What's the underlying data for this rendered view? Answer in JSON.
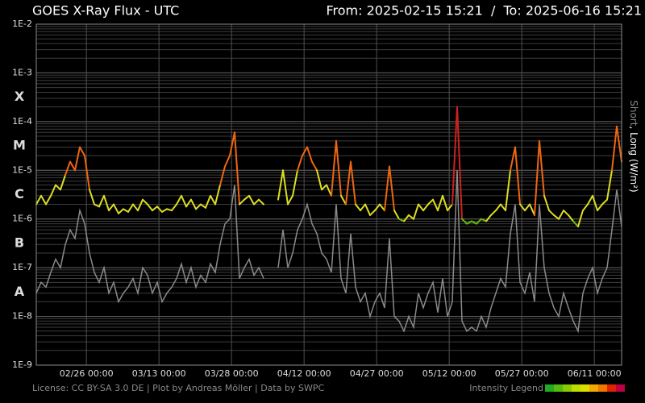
{
  "chart_data": {
    "type": "line",
    "title": "GOES X-Ray Flux - UTC",
    "subtitle": "From: 2025-02-15 15:21  /  To: 2025-06-16 15:21",
    "y_label_short": "Short",
    "y_label_long": ", Long (W/m²)",
    "short_color": "#8a8a8a",
    "long_label_color": "#ffffff",
    "license": "License: CC BY-SA 3.0 DE | Plot by Andreas Möller | Data by SWPC",
    "legend_label": "Intensity Legend",
    "legend_colors": [
      "#22aa22",
      "#55bb11",
      "#88cc00",
      "#bbdd00",
      "#dddd00",
      "#eeaa00",
      "#ee7700",
      "#dd2200",
      "#bb0044"
    ],
    "classes": [
      {
        "label": "X",
        "color": "#cc2222"
      },
      {
        "label": "M",
        "color": "#ee6611"
      },
      {
        "label": "C",
        "color": "#dddd22"
      },
      {
        "label": "B",
        "color": "#66bb11"
      },
      {
        "label": "A",
        "color": "#22aa22"
      }
    ],
    "log_scale": true,
    "grid": true,
    "minor_grid": true,
    "ylim": [
      1e-09,
      0.01
    ],
    "yticks": [
      {
        "value": 0.01,
        "label": "1E-2"
      },
      {
        "value": 0.001,
        "label": "1E-3"
      },
      {
        "value": 0.0001,
        "label": "1E-4"
      },
      {
        "value": 1e-05,
        "label": "1E-5"
      },
      {
        "value": 1e-06,
        "label": "1E-6"
      },
      {
        "value": 1e-07,
        "label": "1E-7"
      },
      {
        "value": 1e-08,
        "label": "1E-8"
      },
      {
        "value": 1e-09,
        "label": "1E-9"
      }
    ],
    "xlim": [
      "2025-02-15 15:21",
      "2025-06-16 15:21"
    ],
    "xticks": [
      {
        "value": "2025-02-26 00:00",
        "label": "02/26 00:00"
      },
      {
        "value": "2025-03-13 00:00",
        "label": "03/13 00:00"
      },
      {
        "value": "2025-03-28 00:00",
        "label": "03/28 00:00"
      },
      {
        "value": "2025-04-12 00:00",
        "label": "04/12 00:00"
      },
      {
        "value": "2025-04-27 00:00",
        "label": "04/27 00:00"
      },
      {
        "value": "2025-05-12 00:00",
        "label": "05/12 00:00"
      },
      {
        "value": "2025-05-27 00:00",
        "label": "05/27 00:00"
      },
      {
        "value": "2025-06-11 00:00",
        "label": "06/11 00:00"
      }
    ],
    "x": [
      "2025-02-15 15:21",
      "2025-02-16 15:21",
      "2025-02-17 15:21",
      "2025-02-18 15:21",
      "2025-02-19 15:21",
      "2025-02-20 15:21",
      "2025-02-21 15:21",
      "2025-02-22 15:21",
      "2025-02-23 15:21",
      "2025-02-24 15:21",
      "2025-02-25 15:21",
      "2025-02-26 15:21",
      "2025-02-27 15:21",
      "2025-02-28 15:21",
      "2025-03-01 15:21",
      "2025-03-02 15:21",
      "2025-03-03 15:21",
      "2025-03-04 15:21",
      "2025-03-05 15:21",
      "2025-03-06 15:21",
      "2025-03-07 15:21",
      "2025-03-08 15:21",
      "2025-03-09 15:21",
      "2025-03-10 15:21",
      "2025-03-11 15:21",
      "2025-03-12 15:21",
      "2025-03-13 15:21",
      "2025-03-14 15:21",
      "2025-03-15 15:21",
      "2025-03-16 15:21",
      "2025-03-17 15:21",
      "2025-03-18 15:21",
      "2025-03-19 15:21",
      "2025-03-20 15:21",
      "2025-03-21 15:21",
      "2025-03-22 15:21",
      "2025-03-23 15:21",
      "2025-03-24 15:21",
      "2025-03-25 15:21",
      "2025-03-26 15:21",
      "2025-03-27 15:21",
      "2025-03-28 15:21",
      "2025-03-29 15:21",
      "2025-03-30 15:21",
      "2025-03-31 15:21",
      "2025-04-01 15:21",
      "2025-04-02 15:21",
      "2025-04-03 15:21",
      "2025-04-04 15:21",
      "2025-04-05 15:21",
      "2025-04-06 15:21",
      "2025-04-07 15:21",
      "2025-04-08 15:21",
      "2025-04-09 15:21",
      "2025-04-10 15:21",
      "2025-04-11 15:21",
      "2025-04-12 15:21",
      "2025-04-13 15:21",
      "2025-04-14 15:21",
      "2025-04-15 15:21",
      "2025-04-16 15:21",
      "2025-04-17 15:21",
      "2025-04-18 15:21",
      "2025-04-19 15:21",
      "2025-04-20 15:21",
      "2025-04-21 15:21",
      "2025-04-22 15:21",
      "2025-04-23 15:21",
      "2025-04-24 15:21",
      "2025-04-25 15:21",
      "2025-04-26 15:21",
      "2025-04-27 15:21",
      "2025-04-28 15:21",
      "2025-04-29 15:21",
      "2025-04-30 15:21",
      "2025-05-01 15:21",
      "2025-05-02 15:21",
      "2025-05-03 15:21",
      "2025-05-04 15:21",
      "2025-05-05 15:21",
      "2025-05-06 15:21",
      "2025-05-07 15:21",
      "2025-05-08 15:21",
      "2025-05-09 15:21",
      "2025-05-10 15:21",
      "2025-05-11 15:21",
      "2025-05-12 15:21",
      "2025-05-13 15:21",
      "2025-05-14 15:21",
      "2025-05-15 15:21",
      "2025-05-16 15:21",
      "2025-05-17 15:21",
      "2025-05-18 15:21",
      "2025-05-19 15:21",
      "2025-05-20 15:21",
      "2025-05-21 15:21",
      "2025-05-22 15:21",
      "2025-05-23 15:21",
      "2025-05-24 15:21",
      "2025-05-25 15:21",
      "2025-05-26 15:21",
      "2025-05-27 15:21",
      "2025-05-28 15:21",
      "2025-05-29 15:21",
      "2025-05-30 15:21",
      "2025-05-31 15:21",
      "2025-06-01 15:21",
      "2025-06-02 15:21",
      "2025-06-03 15:21",
      "2025-06-04 15:21",
      "2025-06-05 15:21",
      "2025-06-06 15:21",
      "2025-06-07 15:21",
      "2025-06-08 15:21",
      "2025-06-09 15:21",
      "2025-06-10 15:21",
      "2025-06-11 15:21",
      "2025-06-12 15:21",
      "2025-06-13 15:21",
      "2025-06-14 15:21",
      "2025-06-15 15:21",
      "2025-06-16 15:21"
    ],
    "series": [
      {
        "color": "#8a8a8a",
        "values": [
          3e-08,
          5e-08,
          4e-08,
          8e-08,
          1.5e-07,
          1e-07,
          3e-07,
          6e-07,
          4e-07,
          1.5e-06,
          8e-07,
          2e-07,
          8e-08,
          5e-08,
          1e-07,
          3e-08,
          5e-08,
          2e-08,
          3e-08,
          4e-08,
          6e-08,
          3e-08,
          1e-07,
          7e-08,
          3e-08,
          5e-08,
          2e-08,
          3e-08,
          4e-08,
          6e-08,
          1.2e-07,
          5e-08,
          1e-07,
          4e-08,
          7e-08,
          5e-08,
          1.2e-07,
          8e-08,
          3e-07,
          8e-07,
          1e-06,
          5e-06,
          6e-08,
          1e-07,
          1.5e-07,
          7e-08,
          1e-07,
          6e-08,
          null,
          null,
          1e-07,
          6e-07,
          1e-07,
          2e-07,
          6e-07,
          1e-06,
          2e-06,
          8e-07,
          5e-07,
          2e-07,
          1.5e-07,
          8e-08,
          2e-06,
          6e-08,
          3e-08,
          5e-07,
          4e-08,
          2e-08,
          3e-08,
          1e-08,
          2e-08,
          3e-08,
          1.5e-08,
          4e-07,
          1e-08,
          8e-09,
          5e-09,
          1e-08,
          6e-09,
          3e-08,
          1.5e-08,
          3e-08,
          5e-08,
          1.2e-08,
          6e-08,
          1e-08,
          2e-08,
          1e-05,
          8e-09,
          5e-09,
          6e-09,
          5e-09,
          1e-08,
          6e-09,
          1.5e-08,
          3e-08,
          6e-08,
          4e-08,
          5e-07,
          2e-06,
          5e-08,
          3e-08,
          8e-08,
          2e-08,
          2e-06,
          1e-07,
          3e-08,
          1.5e-08,
          1e-08,
          3e-08,
          1.5e-08,
          8e-09,
          5e-09,
          3e-08,
          6e-08,
          1e-07,
          3e-08,
          6e-08,
          1e-07,
          6e-07,
          4e-06,
          7e-07
        ]
      },
      {
        "values": [
          2e-06,
          3e-06,
          2e-06,
          3e-06,
          5e-06,
          4e-06,
          8e-06,
          1.5e-05,
          1e-05,
          3e-05,
          2e-05,
          4e-06,
          2e-06,
          1.8e-06,
          3e-06,
          1.5e-06,
          2e-06,
          1.3e-06,
          1.6e-06,
          1.4e-06,
          2e-06,
          1.5e-06,
          2.5e-06,
          2e-06,
          1.5e-06,
          1.8e-06,
          1.4e-06,
          1.6e-06,
          1.5e-06,
          2e-06,
          3e-06,
          1.8e-06,
          2.5e-06,
          1.6e-06,
          2e-06,
          1.7e-06,
          3e-06,
          2e-06,
          5e-06,
          1.2e-05,
          2e-05,
          6e-05,
          2e-06,
          2.5e-06,
          3e-06,
          2e-06,
          2.5e-06,
          2e-06,
          null,
          null,
          2.5e-06,
          1e-05,
          2e-06,
          3e-06,
          1e-05,
          2e-05,
          3e-05,
          1.5e-05,
          1e-05,
          4e-06,
          5e-06,
          3e-06,
          4e-05,
          3e-06,
          2e-06,
          1.5e-05,
          2e-06,
          1.5e-06,
          2e-06,
          1.2e-06,
          1.5e-06,
          2e-06,
          1.5e-06,
          1.2e-05,
          1.5e-06,
          1e-06,
          9e-07,
          1.2e-06,
          1e-06,
          2e-06,
          1.5e-06,
          2e-06,
          2.5e-06,
          1.5e-06,
          3e-06,
          1.5e-06,
          2e-06,
          0.0002,
          1e-06,
          8e-07,
          9e-07,
          8e-07,
          1e-06,
          9e-07,
          1.2e-06,
          1.5e-06,
          2e-06,
          1.5e-06,
          1e-05,
          3e-05,
          2e-06,
          1.5e-06,
          2e-06,
          1.2e-06,
          4e-05,
          3e-06,
          1.5e-06,
          1.2e-06,
          1e-06,
          1.5e-06,
          1.2e-06,
          9e-07,
          7e-07,
          1.5e-06,
          2e-06,
          3e-06,
          1.5e-06,
          2e-06,
          2.5e-06,
          1e-05,
          8e-05,
          1.5e-05
        ]
      }
    ]
  }
}
